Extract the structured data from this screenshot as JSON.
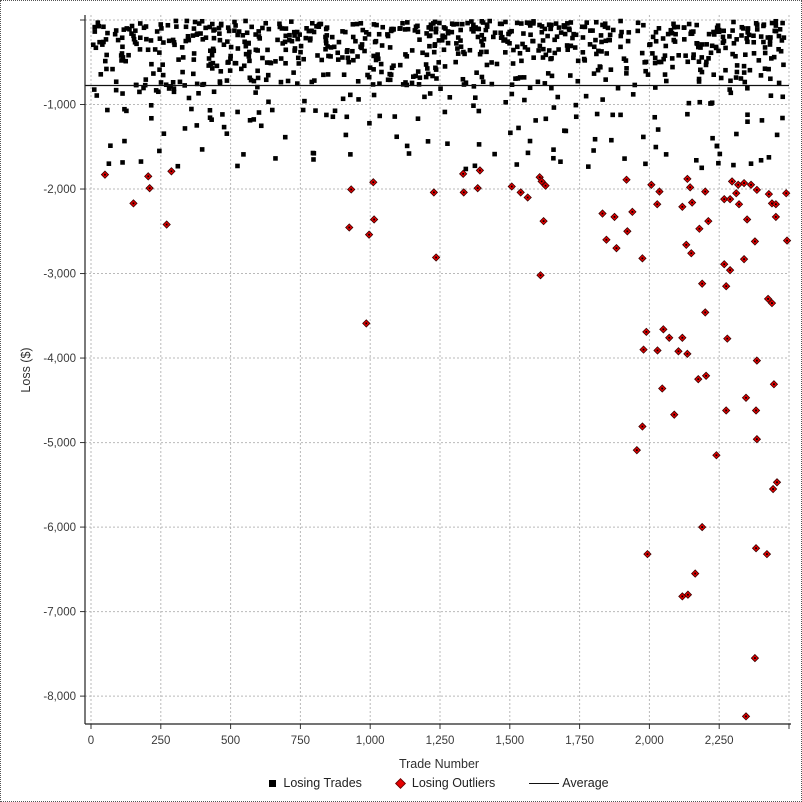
{
  "chart_data": {
    "type": "scatter",
    "title": "",
    "xlabel": "Trade Number",
    "ylabel": "Loss ($)",
    "xlim": [
      0,
      2500
    ],
    "ylim": [
      -8330,
      0
    ],
    "grid": {
      "style": "dashed",
      "color": "#b9b9b9"
    },
    "legend_position": "bottom",
    "x_ticks": [
      {
        "v": 0,
        "l": "0"
      },
      {
        "v": 250,
        "l": "250"
      },
      {
        "v": 500,
        "l": "500"
      },
      {
        "v": 750,
        "l": "750"
      },
      {
        "v": 1000,
        "l": "1,000"
      },
      {
        "v": 1250,
        "l": "1,250"
      },
      {
        "v": 1500,
        "l": "1,500"
      },
      {
        "v": 1750,
        "l": "1,750"
      },
      {
        "v": 2000,
        "l": "2,000"
      },
      {
        "v": 2250,
        "l": "2,250"
      },
      {
        "v": 2500,
        "l": ""
      }
    ],
    "y_ticks": [
      {
        "v": 0,
        "l": ""
      },
      {
        "v": -1000,
        "l": "-1,000"
      },
      {
        "v": -2000,
        "l": "-2,000"
      },
      {
        "v": -3000,
        "l": "-3,000"
      },
      {
        "v": -4000,
        "l": "-4,000"
      },
      {
        "v": -5000,
        "l": "-5,000"
      },
      {
        "v": -6000,
        "l": "-6,000"
      },
      {
        "v": -7000,
        "l": "-7,000"
      },
      {
        "v": -8000,
        "l": "-8,000"
      }
    ],
    "average": {
      "label": "Average",
      "value": -775,
      "color": "#111111"
    },
    "series": [
      {
        "name": "Losing Trades",
        "marker": "square",
        "color": "#000000",
        "points": [
          [
            64,
            -1700
          ],
          [
            179,
            -1675
          ],
          [
            261,
            -1345
          ],
          [
            311,
            -1730
          ],
          [
            546,
            -1590
          ],
          [
            929,
            -1590
          ],
          [
            1139,
            -1580
          ],
          [
            1375,
            -1725
          ],
          [
            1525,
            -1710
          ],
          [
            1911,
            -1640
          ],
          [
            2060,
            -1590
          ],
          [
            2168,
            -1660
          ],
          [
            2364,
            -1700
          ],
          [
            2400,
            -1660
          ],
          [
            2428,
            -1625
          ]
        ],
        "cloud": {
          "seed": 42,
          "x_min": 4,
          "x_max": 2492,
          "bands": [
            {
              "n": 330,
              "from": -250,
              "to": -10
            },
            {
              "n": 230,
              "from": -520,
              "to": -250
            },
            {
              "n": 140,
              "from": -780,
              "to": -520
            },
            {
              "n": 90,
              "from": -1200,
              "to": -780
            },
            {
              "n": 40,
              "from": -1600,
              "to": -1200
            },
            {
              "n": 12,
              "from": -1800,
              "to": -1600
            }
          ]
        }
      },
      {
        "name": "Losing Outliers",
        "marker": "diamond",
        "color": "#e60000",
        "points": [
          [
            50,
            -1830
          ],
          [
            152,
            -2170
          ],
          [
            205,
            -1850
          ],
          [
            210,
            -1990
          ],
          [
            271,
            -2420
          ],
          [
            288,
            -1790
          ],
          [
            925,
            -2455
          ],
          [
            932,
            -2005
          ],
          [
            986,
            -3590
          ],
          [
            996,
            -2540
          ],
          [
            1011,
            -1920
          ],
          [
            1014,
            -2360
          ],
          [
            1228,
            -2040
          ],
          [
            1236,
            -2810
          ],
          [
            1333,
            -1820
          ],
          [
            1335,
            -2040
          ],
          [
            1385,
            -1990
          ],
          [
            1393,
            -1780
          ],
          [
            1507,
            -1970
          ],
          [
            1539,
            -2040
          ],
          [
            1564,
            -2100
          ],
          [
            1607,
            -1860
          ],
          [
            1610,
            -3020
          ],
          [
            1614,
            -1910
          ],
          [
            1621,
            -2380
          ],
          [
            1628,
            -1960
          ],
          [
            1832,
            -2290
          ],
          [
            1846,
            -2600
          ],
          [
            1875,
            -2330
          ],
          [
            1882,
            -2700
          ],
          [
            1918,
            -1890
          ],
          [
            1921,
            -2500
          ],
          [
            1939,
            -2270
          ],
          [
            1955,
            -5090
          ],
          [
            1975,
            -2820
          ],
          [
            1975,
            -4810
          ],
          [
            1979,
            -3900
          ],
          [
            1989,
            -3690
          ],
          [
            1993,
            -6320
          ],
          [
            2007,
            -1950
          ],
          [
            2028,
            -2180
          ],
          [
            2029,
            -3910
          ],
          [
            2036,
            -2030
          ],
          [
            2046,
            -4360
          ],
          [
            2050,
            -3660
          ],
          [
            2071,
            -3760
          ],
          [
            2089,
            -4670
          ],
          [
            2104,
            -3920
          ],
          [
            2118,
            -2210
          ],
          [
            2118,
            -3760
          ],
          [
            2118,
            -6820
          ],
          [
            2132,
            -2660
          ],
          [
            2136,
            -1880
          ],
          [
            2136,
            -3950
          ],
          [
            2138,
            -6800
          ],
          [
            2146,
            -1980
          ],
          [
            2150,
            -2760
          ],
          [
            2153,
            -2160
          ],
          [
            2164,
            -6550
          ],
          [
            2175,
            -4250
          ],
          [
            2179,
            -2470
          ],
          [
            2189,
            -3120
          ],
          [
            2189,
            -6000
          ],
          [
            2200,
            -2030
          ],
          [
            2200,
            -3460
          ],
          [
            2203,
            -4210
          ],
          [
            2211,
            -2380
          ],
          [
            2240,
            -5150
          ],
          [
            2268,
            -2120
          ],
          [
            2268,
            -2890
          ],
          [
            2275,
            -3150
          ],
          [
            2275,
            -4620
          ],
          [
            2279,
            -3770
          ],
          [
            2289,
            -2120
          ],
          [
            2289,
            -2960
          ],
          [
            2296,
            -1910
          ],
          [
            2311,
            -2050
          ],
          [
            2318,
            -1950
          ],
          [
            2321,
            -2180
          ],
          [
            2339,
            -1930
          ],
          [
            2339,
            -2830
          ],
          [
            2346,
            -4470
          ],
          [
            2346,
            -8240
          ],
          [
            2350,
            -2360
          ],
          [
            2364,
            -1950
          ],
          [
            2378,
            -2620
          ],
          [
            2378,
            -7550
          ],
          [
            2382,
            -4620
          ],
          [
            2382,
            -6250
          ],
          [
            2385,
            -2010
          ],
          [
            2385,
            -4030
          ],
          [
            2385,
            -4960
          ],
          [
            2421,
            -6320
          ],
          [
            2425,
            -3300
          ],
          [
            2428,
            -2060
          ],
          [
            2439,
            -2170
          ],
          [
            2439,
            -3350
          ],
          [
            2443,
            -5550
          ],
          [
            2446,
            -4310
          ],
          [
            2453,
            -2180
          ],
          [
            2453,
            -2330
          ],
          [
            2457,
            -5470
          ],
          [
            2490,
            -2050
          ],
          [
            2493,
            -2610
          ]
        ]
      }
    ]
  }
}
